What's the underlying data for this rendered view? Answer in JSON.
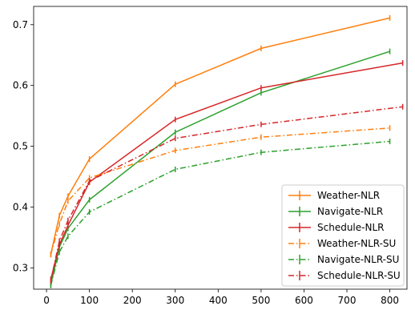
{
  "chart_data": {
    "type": "line",
    "title": "",
    "xlabel": "",
    "ylabel": "",
    "xlim": [
      -30,
      840
    ],
    "ylim": [
      0.265,
      0.73
    ],
    "xticks": [
      0,
      100,
      200,
      300,
      400,
      500,
      600,
      700,
      800
    ],
    "yticks": [
      0.3,
      0.4,
      0.5,
      0.6,
      0.7
    ],
    "xtick_labels": [
      "0",
      "100",
      "200",
      "300",
      "400",
      "500",
      "600",
      "700",
      "800"
    ],
    "ytick_labels": [
      "0.3",
      "0.4",
      "0.5",
      "0.6",
      "0.7"
    ],
    "grid": false,
    "legend_position": "lower-right",
    "series": [
      {
        "name": "Weather-NLR",
        "color": "#ff7f0e",
        "dash": "solid",
        "x": [
          10,
          30,
          50,
          100,
          300,
          500,
          800
        ],
        "y": [
          0.322,
          0.386,
          0.418,
          0.479,
          0.602,
          0.661,
          0.711
        ]
      },
      {
        "name": "Navigate-NLR",
        "color": "#2ca02c",
        "dash": "solid",
        "x": [
          10,
          30,
          50,
          100,
          300,
          500,
          800
        ],
        "y": [
          0.273,
          0.334,
          0.365,
          0.412,
          0.523,
          0.588,
          0.656
        ]
      },
      {
        "name": "Schedule-NLR",
        "color": "#d62728",
        "dash": "solid",
        "x": [
          10,
          30,
          50,
          100,
          300,
          500,
          830
        ],
        "y": [
          0.281,
          0.338,
          0.37,
          0.441,
          0.544,
          0.596,
          0.637
        ]
      },
      {
        "name": "Weather-NLR-SU",
        "color": "#ff7f0e",
        "dash": "dashdot",
        "x": [
          10,
          30,
          50,
          100,
          300,
          500,
          800
        ],
        "y": [
          0.322,
          0.372,
          0.41,
          0.448,
          0.493,
          0.515,
          0.53
        ]
      },
      {
        "name": "Navigate-NLR-SU",
        "color": "#2ca02c",
        "dash": "dashdot",
        "x": [
          10,
          30,
          50,
          100,
          300,
          500,
          800
        ],
        "y": [
          0.271,
          0.326,
          0.352,
          0.392,
          0.462,
          0.49,
          0.508
        ]
      },
      {
        "name": "Schedule-NLR-SU",
        "color": "#d62728",
        "dash": "dashdot",
        "x": [
          10,
          30,
          50,
          100,
          300,
          500,
          830
        ],
        "y": [
          0.279,
          0.344,
          0.378,
          0.443,
          0.513,
          0.536,
          0.565
        ]
      }
    ]
  }
}
